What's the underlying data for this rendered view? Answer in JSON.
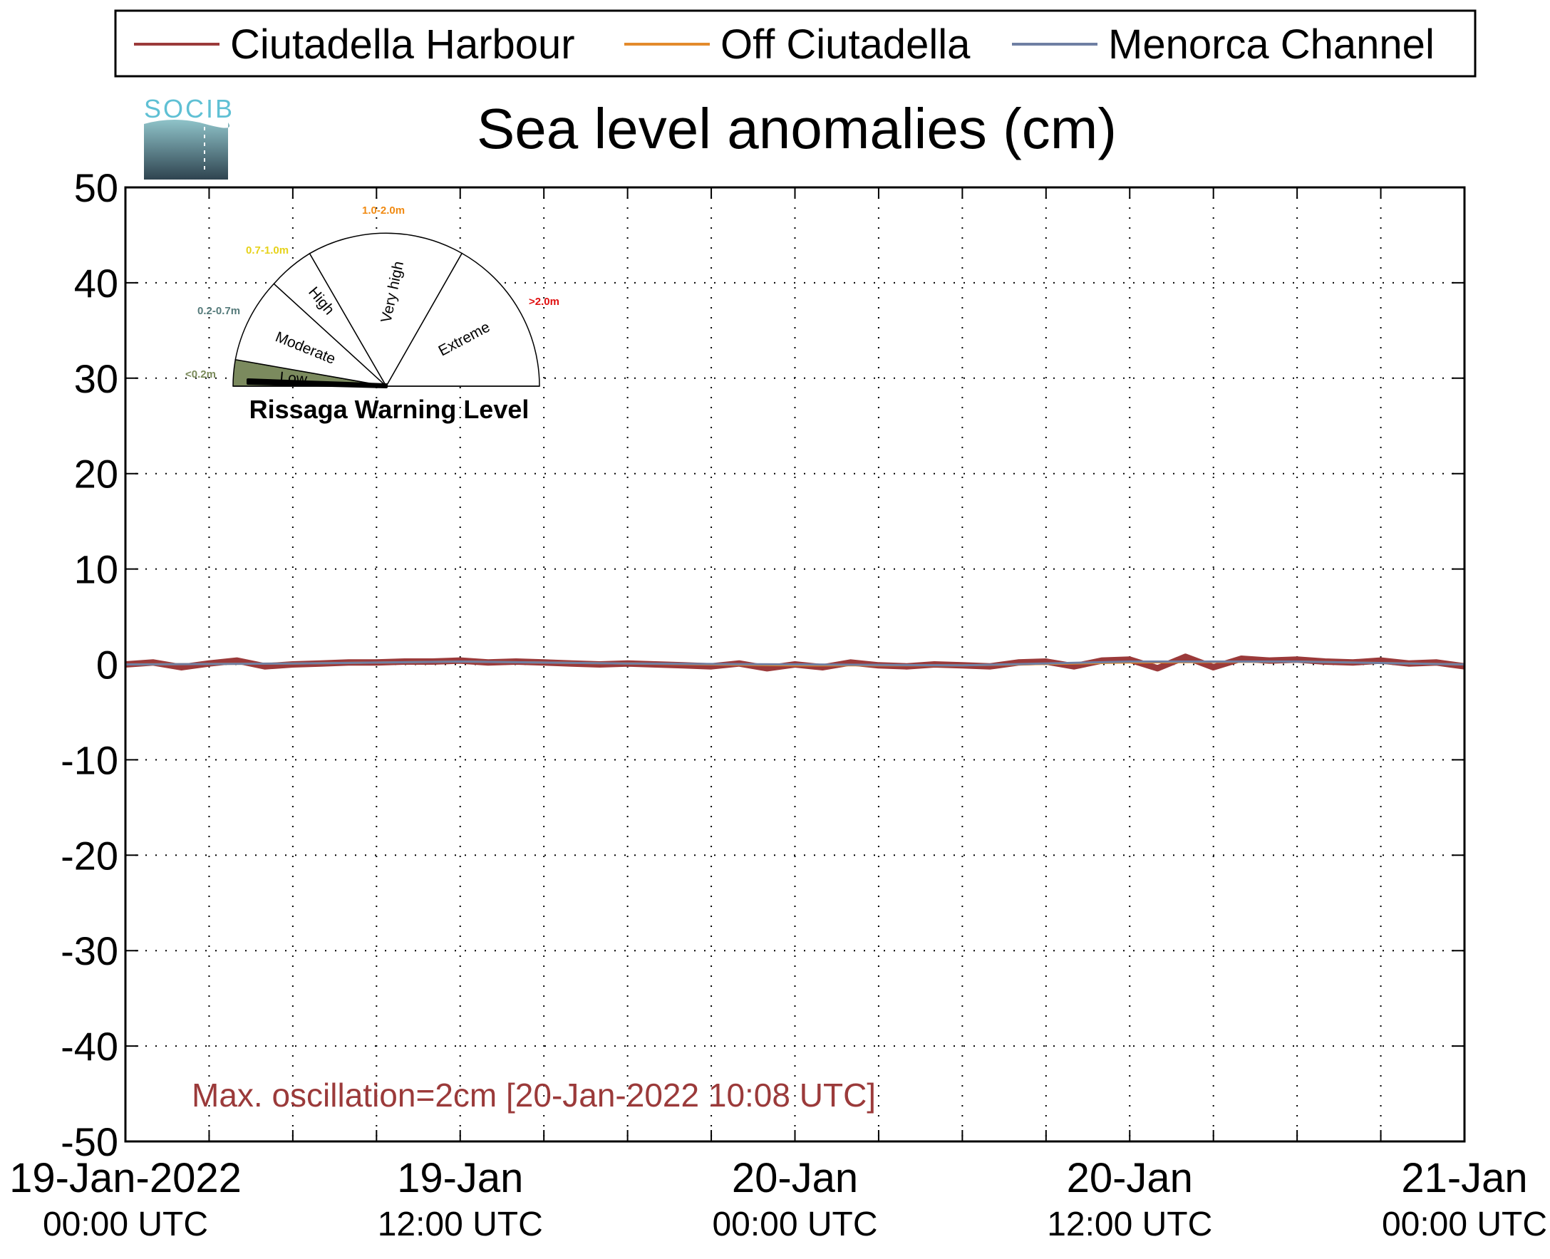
{
  "chart_data": {
    "type": "line",
    "title": "Sea level anomalies (cm)",
    "ylabel": "",
    "xlabel": "",
    "ylim": [
      -50,
      50
    ],
    "yticks": [
      50,
      40,
      30,
      20,
      10,
      0,
      -10,
      -20,
      -30,
      -40,
      -50
    ],
    "grid": true,
    "legend_placement": "top",
    "x_range": [
      "19-Jan-2022 00:00 UTC",
      "21-Jan-2022 00:00 UTC"
    ],
    "xtick_labels": [
      {
        "line1": "19-Jan-2022",
        "line2": "00:00 UTC",
        "x_hours": 0
      },
      {
        "line1": "19-Jan",
        "line2": "12:00 UTC",
        "x_hours": 12
      },
      {
        "line1": "20-Jan",
        "line2": "00:00 UTC",
        "x_hours": 24
      },
      {
        "line1": "20-Jan",
        "line2": "12:00 UTC",
        "x_hours": 36
      },
      {
        "line1": "21-Jan",
        "line2": "00:00 UTC",
        "x_hours": 48
      }
    ],
    "minor_xticks_hours": [
      3,
      6,
      9,
      15,
      18,
      21,
      27,
      30,
      33,
      39,
      42,
      45
    ],
    "series": [
      {
        "name": "Ciutadella Harbour",
        "color": "#9b3a3a",
        "x_hours": [
          0,
          1,
          2,
          3,
          4,
          5,
          6,
          7,
          8,
          9,
          10,
          11,
          12,
          13,
          14,
          15,
          16,
          17,
          18,
          19,
          20,
          21,
          22,
          23,
          24,
          25,
          26,
          27,
          28,
          29,
          30,
          31,
          32,
          33,
          34,
          35,
          36,
          37,
          38,
          39,
          40,
          41,
          42,
          43,
          44,
          45,
          46,
          47,
          48
        ],
        "values": [
          0.0,
          0.2,
          -0.3,
          0.1,
          0.4,
          -0.2,
          0.0,
          0.1,
          0.2,
          0.2,
          0.3,
          0.3,
          0.4,
          0.2,
          0.3,
          0.2,
          0.1,
          0.0,
          0.1,
          0.0,
          -0.1,
          -0.2,
          0.1,
          -0.4,
          0.0,
          -0.3,
          0.2,
          -0.1,
          -0.2,
          0.0,
          -0.1,
          -0.2,
          0.2,
          0.3,
          -0.2,
          0.4,
          0.5,
          -0.4,
          0.8,
          -0.3,
          0.6,
          0.4,
          0.5,
          0.3,
          0.2,
          0.4,
          0.1,
          0.2,
          -0.2
        ]
      },
      {
        "name": "Off Ciutadella",
        "color": "#e38b2c",
        "x_hours": [
          0,
          6,
          12,
          18,
          24,
          30,
          36,
          42,
          48
        ],
        "values": [
          0.0,
          0.1,
          0.3,
          0.1,
          -0.1,
          -0.1,
          0.2,
          0.3,
          0.0
        ]
      },
      {
        "name": "Menorca Channel",
        "color": "#6f7fa3",
        "x_hours": [
          0,
          6,
          12,
          18,
          24,
          30,
          36,
          42,
          48
        ],
        "values": [
          0.0,
          0.1,
          0.3,
          0.1,
          0.0,
          -0.1,
          0.3,
          0.3,
          0.0
        ]
      }
    ],
    "annotation": "Max. oscillation=2cm [20-Jan-2022 10:08 UTC]",
    "annotation_color": "#9b3a3a"
  },
  "logo": {
    "text": "SOCIB",
    "color": "#5fc0d4"
  },
  "gauge": {
    "title": "Rissaga Warning Level",
    "sectors": [
      {
        "label": "Low",
        "range": "<0.2m",
        "range_color": "#7a8a5a",
        "active": true,
        "fill": "#7b8a5e"
      },
      {
        "label": "Moderate",
        "range": "0.2-0.7m",
        "range_color": "#557a7a",
        "active": false
      },
      {
        "label": "High",
        "range": "0.7-1.0m",
        "range_color": "#e6d21a",
        "active": false
      },
      {
        "label": "Very high",
        "range": "1.0-2.0m",
        "range_color": "#f08a12",
        "active": false
      },
      {
        "label": "Extreme",
        "range": ">2.0m",
        "range_color": "#e01010",
        "active": false
      }
    ],
    "needle_level": "Low"
  }
}
